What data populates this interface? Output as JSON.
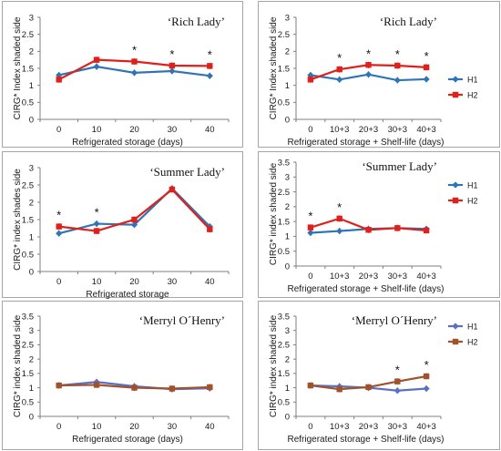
{
  "chart_data": [
    {
      "type": "line",
      "title": "‘Rich Lady’",
      "xlabel": "Refrigerated storage (days)",
      "ylabel": "CIRG* Index shaded side",
      "categories": [
        "0",
        "10",
        "20",
        "30",
        "40"
      ],
      "ylim": [
        0,
        3
      ],
      "yticks": [
        "0",
        "0.5",
        "1",
        "1.5",
        "2",
        "2.5",
        "3"
      ],
      "series": [
        {
          "color": "#2e75b6",
          "marker": "diamond",
          "values": [
            1.3,
            1.55,
            1.37,
            1.42,
            1.28
          ]
        },
        {
          "color": "#e0201b",
          "marker": "square",
          "values": [
            1.17,
            1.75,
            1.7,
            1.58,
            1.57
          ]
        }
      ],
      "annotations": [
        {
          "category": "20",
          "text": "*"
        },
        {
          "category": "30",
          "text": "*"
        },
        {
          "category": "40",
          "text": "*"
        }
      ]
    },
    {
      "type": "line",
      "title": "‘Rich Lady’",
      "xlabel": "Refrigerated storage + Shelf-life (days)",
      "ylabel": "CIRG* Index shaded side",
      "categories": [
        "0",
        "10+3",
        "20+3",
        "30+3",
        "40+3"
      ],
      "ylim": [
        0,
        3
      ],
      "yticks": [
        "0",
        "0.5",
        "1",
        "1.5",
        "2",
        "2.5",
        "3"
      ],
      "legend": "right",
      "series": [
        {
          "name": "H1",
          "color": "#2e75b6",
          "marker": "diamond",
          "values": [
            1.3,
            1.17,
            1.32,
            1.15,
            1.18
          ]
        },
        {
          "name": "H2",
          "color": "#e0201b",
          "marker": "square",
          "values": [
            1.17,
            1.47,
            1.6,
            1.58,
            1.53
          ]
        }
      ],
      "annotations": [
        {
          "category": "10+3",
          "text": "*"
        },
        {
          "category": "20+3",
          "text": "*"
        },
        {
          "category": "30+3",
          "text": "*"
        },
        {
          "category": "40+3",
          "text": "*"
        }
      ]
    },
    {
      "type": "line",
      "title": "‘Summer Lady’",
      "xlabel": "Refrigerated storage",
      "ylabel": "CIRG* index shades side",
      "categories": [
        "0",
        "10",
        "20",
        "30",
        "40"
      ],
      "ylim": [
        0,
        3
      ],
      "yticks": [
        "0",
        "0.5",
        "1",
        "1.5",
        "2",
        "2.5",
        "3"
      ],
      "series": [
        {
          "color": "#2e75b6",
          "marker": "diamond",
          "values": [
            1.1,
            1.38,
            1.35,
            2.4,
            1.3
          ]
        },
        {
          "color": "#e0201b",
          "marker": "square",
          "values": [
            1.3,
            1.17,
            1.5,
            2.37,
            1.22
          ]
        }
      ],
      "annotations": [
        {
          "category": "0",
          "text": "*"
        },
        {
          "category": "10",
          "text": "*"
        }
      ]
    },
    {
      "type": "line",
      "title": "‘Summer Lady’",
      "xlabel": "Refrigerated storage + Shelf-life (days)",
      "ylabel": "CIRG* index shaded side",
      "categories": [
        "0",
        "10+3",
        "20+3",
        "30+3",
        "40+3"
      ],
      "ylim": [
        0,
        3.5
      ],
      "yticks": [
        "0",
        "0.5",
        "1",
        "1.5",
        "2",
        "2.5",
        "3",
        "3.5"
      ],
      "legend": "right",
      "series": [
        {
          "name": "H1",
          "color": "#2e75b6",
          "marker": "diamond",
          "values": [
            1.12,
            1.18,
            1.25,
            1.28,
            1.25
          ]
        },
        {
          "name": "H2",
          "color": "#e0201b",
          "marker": "square",
          "values": [
            1.3,
            1.6,
            1.22,
            1.28,
            1.2
          ]
        }
      ],
      "annotations": [
        {
          "category": "0",
          "text": "*"
        },
        {
          "category": "10+3",
          "text": "*"
        }
      ]
    },
    {
      "type": "line",
      "title": "‘Merryl O´Henry’",
      "xlabel": "Refrigerated storage (days)",
      "ylabel": "CIRG* index shaded side",
      "categories": [
        "0",
        "10",
        "20",
        "30",
        "40"
      ],
      "ylim": [
        0,
        3.5
      ],
      "yticks": [
        "0",
        "0.5",
        "1",
        "1.5",
        "2",
        "2.5",
        "3",
        "3.5"
      ],
      "series": [
        {
          "color": "#5b6fc4",
          "marker": "diamond",
          "values": [
            1.08,
            1.2,
            1.05,
            0.95,
            0.98
          ]
        },
        {
          "color": "#a0522d",
          "marker": "square",
          "values": [
            1.08,
            1.1,
            1.0,
            0.97,
            1.02
          ]
        }
      ],
      "annotations": []
    },
    {
      "type": "line",
      "title": "‘Merryl O´Henry’",
      "xlabel": "Refrigerated storage + Shelf-life (days)",
      "ylabel": "CIRG* index shaded side",
      "categories": [
        "0",
        "10+3",
        "20+3",
        "30+3",
        "40+3"
      ],
      "ylim": [
        0,
        3.5
      ],
      "yticks": [
        "0",
        "0.5",
        "1",
        "1.5",
        "2",
        "2.5",
        "3",
        "3.5"
      ],
      "legend": "right",
      "series": [
        {
          "name": "H1",
          "color": "#5b6fc4",
          "marker": "diamond",
          "values": [
            1.08,
            1.05,
            1.0,
            0.9,
            0.97
          ]
        },
        {
          "name": "H2",
          "color": "#a0522d",
          "marker": "square",
          "values": [
            1.08,
            0.95,
            1.02,
            1.22,
            1.4
          ]
        }
      ],
      "annotations": [
        {
          "category": "30+3",
          "text": "*"
        },
        {
          "category": "40+3",
          "text": "*"
        }
      ]
    }
  ]
}
